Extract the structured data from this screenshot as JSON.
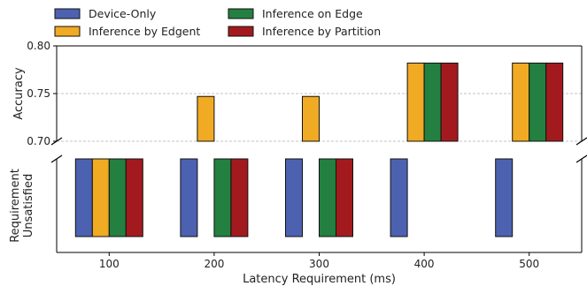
{
  "chart_data": {
    "type": "bar",
    "xlabel": "Latency Requirement (ms)",
    "ylabel": "Accuracy",
    "ylabel_lower": [
      "Requirement",
      "Unsatisfied"
    ],
    "categories": [
      100,
      200,
      300,
      400,
      500
    ],
    "xticks": [
      "100",
      "200",
      "300",
      "400",
      "500"
    ],
    "yticks": [
      "0.70",
      "0.75",
      "0.80"
    ],
    "ylim": [
      0.7,
      0.8
    ],
    "grid": "horizontal dashed at y ticks (upper panel)",
    "broken_axis": true,
    "legend_position": "top-left, outside plot",
    "series": [
      {
        "name": "Device-Only",
        "color": "#4c62b0",
        "values": [
          null,
          null,
          null,
          null,
          null
        ],
        "unsatisfied": [
          true,
          true,
          true,
          true,
          true
        ]
      },
      {
        "name": "Inference by Edgent",
        "color": "#f0aa23",
        "values": [
          null,
          0.747,
          0.747,
          0.782,
          0.782
        ],
        "unsatisfied": [
          true,
          false,
          false,
          false,
          false
        ]
      },
      {
        "name": "Inference on Edge",
        "color": "#238040",
        "values": [
          null,
          null,
          null,
          0.782,
          0.782
        ],
        "unsatisfied": [
          true,
          true,
          true,
          false,
          false
        ]
      },
      {
        "name": "Inference by Partition",
        "color": "#a31a1e",
        "values": [
          null,
          null,
          null,
          0.782,
          0.782
        ],
        "unsatisfied": [
          true,
          true,
          true,
          false,
          false
        ]
      }
    ]
  }
}
